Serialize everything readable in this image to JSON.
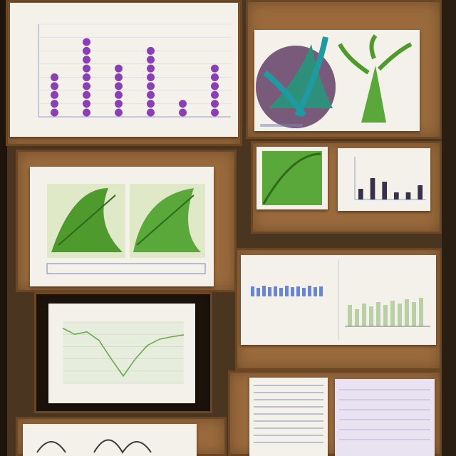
{
  "colors": {
    "wall": "#4a3520",
    "board": "#9a6a3c",
    "paper": "#f3f1e9",
    "dot_purple": "#8a3fb2",
    "leaf_green": "#4f9a2c",
    "ink_blue": "#3b4a7a"
  },
  "chart_data": [
    {
      "type": "scatter",
      "title": "",
      "xlabel": "",
      "ylabel": "",
      "categories": [
        "",
        "",
        "",
        "",
        "",
        ""
      ],
      "values": [
        3,
        6,
        4,
        5,
        1.5,
        4
      ],
      "ylim": [
        0,
        7
      ]
    },
    {
      "type": "line",
      "title": "",
      "xlabel": "",
      "ylabel": "",
      "x": [
        0,
        1,
        2,
        3,
        4,
        5,
        6,
        7,
        8,
        9,
        10
      ],
      "values": [
        9,
        8,
        8.4,
        7,
        4,
        1.2,
        4,
        6.2,
        7.2,
        7.6,
        7.9
      ],
      "ylim": [
        0,
        10
      ]
    },
    {
      "type": "bar",
      "title": "",
      "categories": [
        "",
        "",
        "",
        "",
        "",
        ""
      ],
      "values": [
        1.5,
        3,
        2.5,
        1,
        1,
        2
      ],
      "ylim": [
        0,
        6
      ]
    }
  ],
  "icons": {
    "illustration_tree": "tree-illustration-icon",
    "illustration_leaf": "leaf-illustration-icon"
  }
}
